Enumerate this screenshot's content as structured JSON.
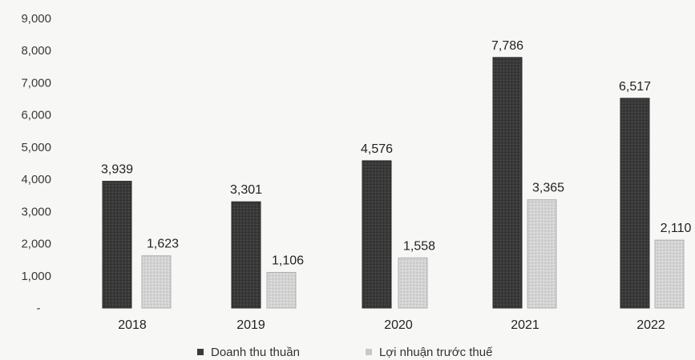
{
  "chart_data": {
    "type": "bar",
    "categories": [
      "2018",
      "2019",
      "2020",
      "2021",
      "2022"
    ],
    "series": [
      {
        "name": "Doanh thu thuần",
        "values": [
          3939,
          3301,
          4576,
          7786,
          6517
        ],
        "labels": [
          "3,939",
          "3,301",
          "4,576",
          "7,786",
          "6,517"
        ],
        "color": "#3a3a3a"
      },
      {
        "name": "Lợi nhuận trước thuế",
        "values": [
          1623,
          1106,
          1558,
          3365,
          2110
        ],
        "labels": [
          "1,623",
          "1,106",
          "1,558",
          "3,365",
          "2,110"
        ],
        "color": "#d2d2d2"
      }
    ],
    "ylim": [
      0,
      9000
    ],
    "yticks": [
      0,
      1000,
      2000,
      3000,
      4000,
      5000,
      6000,
      7000,
      8000,
      9000
    ],
    "ytick_labels": [
      "-",
      "1,000",
      "2,000",
      "3,000",
      "4,000",
      "5,000",
      "6,000",
      "7,000",
      "8,000",
      "9,000"
    ],
    "grid": false,
    "legend_position": "bottom-center",
    "title": "",
    "xlabel": "",
    "ylabel": ""
  }
}
